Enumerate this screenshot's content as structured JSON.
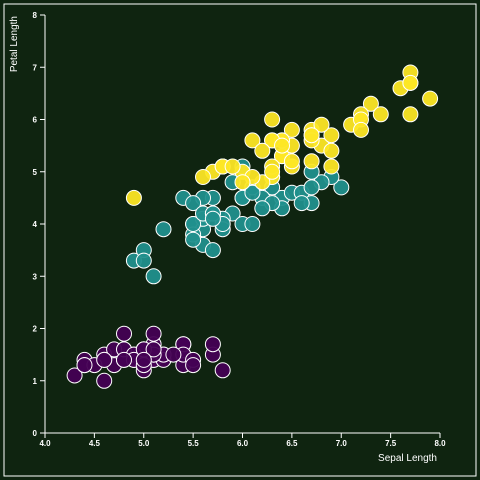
{
  "chart_data": {
    "type": "scatter",
    "title": "",
    "xlabel": "Sepal Length",
    "ylabel": "Petal Length",
    "xlim": [
      4.0,
      8.0
    ],
    "ylim": [
      0,
      8
    ],
    "x_ticks": [
      "4.0",
      "4.5",
      "5.0",
      "5.5",
      "6.0",
      "6.5",
      "7.0",
      "7.5",
      "8.0"
    ],
    "y_ticks": [
      "0",
      "1",
      "2",
      "3",
      "4",
      "5",
      "6",
      "7",
      "8"
    ],
    "grid": false,
    "background_color": "#0f2410",
    "series": [
      {
        "color": "#440154",
        "points": [
          [
            5.1,
            1.4
          ],
          [
            4.9,
            1.4
          ],
          [
            4.7,
            1.3
          ],
          [
            4.6,
            1.5
          ],
          [
            5.0,
            1.4
          ],
          [
            5.4,
            1.7
          ],
          [
            4.6,
            1.4
          ],
          [
            5.0,
            1.5
          ],
          [
            4.4,
            1.4
          ],
          [
            4.9,
            1.5
          ],
          [
            5.4,
            1.5
          ],
          [
            4.8,
            1.6
          ],
          [
            4.8,
            1.4
          ],
          [
            4.3,
            1.1
          ],
          [
            5.8,
            1.2
          ],
          [
            5.7,
            1.5
          ],
          [
            5.4,
            1.3
          ],
          [
            5.1,
            1.4
          ],
          [
            5.7,
            1.7
          ],
          [
            5.1,
            1.5
          ],
          [
            5.4,
            1.7
          ],
          [
            5.1,
            1.5
          ],
          [
            4.6,
            1.0
          ],
          [
            5.1,
            1.7
          ],
          [
            4.8,
            1.9
          ],
          [
            5.0,
            1.6
          ],
          [
            5.0,
            1.6
          ],
          [
            5.2,
            1.5
          ],
          [
            5.2,
            1.4
          ],
          [
            4.7,
            1.6
          ],
          [
            4.8,
            1.6
          ],
          [
            5.4,
            1.5
          ],
          [
            5.2,
            1.5
          ],
          [
            5.5,
            1.4
          ],
          [
            4.9,
            1.5
          ],
          [
            5.0,
            1.2
          ],
          [
            5.5,
            1.3
          ],
          [
            4.9,
            1.4
          ],
          [
            4.4,
            1.3
          ],
          [
            5.1,
            1.5
          ],
          [
            5.0,
            1.3
          ],
          [
            4.5,
            1.3
          ],
          [
            4.4,
            1.3
          ],
          [
            5.0,
            1.6
          ],
          [
            5.1,
            1.9
          ],
          [
            4.8,
            1.4
          ],
          [
            5.1,
            1.6
          ],
          [
            4.6,
            1.4
          ],
          [
            5.3,
            1.5
          ],
          [
            5.0,
            1.4
          ]
        ]
      },
      {
        "color": "#21908d",
        "points": [
          [
            7.0,
            4.7
          ],
          [
            6.4,
            4.5
          ],
          [
            6.9,
            4.9
          ],
          [
            5.5,
            4.0
          ],
          [
            6.5,
            4.6
          ],
          [
            5.7,
            4.5
          ],
          [
            6.3,
            4.7
          ],
          [
            4.9,
            3.3
          ],
          [
            6.6,
            4.6
          ],
          [
            5.2,
            3.9
          ],
          [
            5.0,
            3.5
          ],
          [
            5.9,
            4.2
          ],
          [
            6.0,
            4.0
          ],
          [
            6.1,
            4.7
          ],
          [
            5.6,
            3.6
          ],
          [
            6.7,
            4.4
          ],
          [
            5.6,
            4.5
          ],
          [
            5.8,
            4.1
          ],
          [
            6.2,
            4.5
          ],
          [
            5.6,
            3.9
          ],
          [
            5.9,
            4.8
          ],
          [
            6.1,
            4.0
          ],
          [
            6.3,
            4.9
          ],
          [
            6.1,
            4.7
          ],
          [
            6.4,
            4.3
          ],
          [
            6.6,
            4.4
          ],
          [
            6.8,
            4.8
          ],
          [
            6.7,
            5.0
          ],
          [
            6.0,
            4.5
          ],
          [
            5.7,
            3.5
          ],
          [
            5.5,
            3.8
          ],
          [
            5.5,
            3.7
          ],
          [
            5.8,
            3.9
          ],
          [
            6.0,
            5.1
          ],
          [
            5.4,
            4.5
          ],
          [
            6.0,
            4.5
          ],
          [
            6.7,
            4.7
          ],
          [
            6.3,
            4.4
          ],
          [
            5.6,
            4.1
          ],
          [
            5.5,
            4.0
          ],
          [
            5.5,
            4.4
          ],
          [
            6.1,
            4.6
          ],
          [
            5.8,
            4.0
          ],
          [
            5.0,
            3.3
          ],
          [
            5.6,
            4.2
          ],
          [
            5.7,
            4.2
          ],
          [
            5.7,
            4.2
          ],
          [
            6.2,
            4.3
          ],
          [
            5.1,
            3.0
          ],
          [
            5.7,
            4.1
          ]
        ]
      },
      {
        "color": "#fde725",
        "points": [
          [
            6.3,
            6.0
          ],
          [
            5.8,
            5.1
          ],
          [
            7.1,
            5.9
          ],
          [
            6.3,
            5.6
          ],
          [
            6.5,
            5.8
          ],
          [
            7.6,
            6.6
          ],
          [
            4.9,
            4.5
          ],
          [
            7.3,
            6.3
          ],
          [
            6.7,
            5.8
          ],
          [
            7.2,
            6.1
          ],
          [
            6.5,
            5.1
          ],
          [
            6.4,
            5.3
          ],
          [
            6.8,
            5.5
          ],
          [
            5.7,
            5.0
          ],
          [
            5.8,
            5.1
          ],
          [
            6.4,
            5.3
          ],
          [
            6.5,
            5.5
          ],
          [
            7.7,
            6.7
          ],
          [
            7.7,
            6.9
          ],
          [
            6.0,
            5.0
          ],
          [
            6.9,
            5.7
          ],
          [
            5.6,
            4.9
          ],
          [
            7.7,
            6.7
          ],
          [
            6.3,
            4.9
          ],
          [
            6.7,
            5.7
          ],
          [
            7.2,
            6.0
          ],
          [
            6.2,
            4.8
          ],
          [
            6.1,
            4.9
          ],
          [
            6.4,
            5.6
          ],
          [
            7.2,
            5.8
          ],
          [
            7.4,
            6.1
          ],
          [
            7.9,
            6.4
          ],
          [
            6.4,
            5.6
          ],
          [
            6.3,
            5.1
          ],
          [
            6.1,
            5.6
          ],
          [
            7.7,
            6.1
          ],
          [
            6.3,
            5.6
          ],
          [
            6.4,
            5.5
          ],
          [
            6.0,
            4.8
          ],
          [
            6.9,
            5.4
          ],
          [
            6.7,
            5.6
          ],
          [
            6.9,
            5.1
          ],
          [
            5.8,
            5.1
          ],
          [
            6.8,
            5.9
          ],
          [
            6.7,
            5.7
          ],
          [
            6.7,
            5.2
          ],
          [
            6.3,
            5.0
          ],
          [
            6.5,
            5.2
          ],
          [
            6.2,
            5.4
          ],
          [
            5.9,
            5.1
          ]
        ]
      }
    ]
  }
}
